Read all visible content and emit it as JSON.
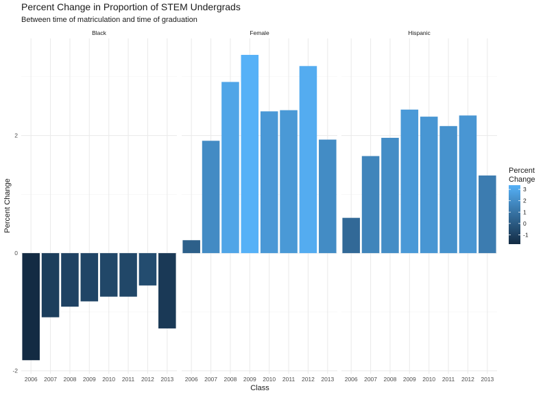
{
  "chart_data": {
    "type": "bar",
    "title": "Percent Change in Proportion of STEM Undergrads",
    "subtitle": "Between time of matriculation and time of graduation",
    "xlabel": "Class",
    "ylabel": "Percent Change",
    "categories": [
      "2006",
      "2007",
      "2008",
      "2009",
      "2010",
      "2011",
      "2012",
      "2013"
    ],
    "ylim": [
      -2.05,
      3.65
    ],
    "y_ticks": [
      -2,
      0,
      2
    ],
    "facets": [
      {
        "name": "Black",
        "values": [
          -1.82,
          -1.09,
          -0.91,
          -0.82,
          -0.74,
          -0.74,
          -0.55,
          -1.28
        ]
      },
      {
        "name": "Female",
        "values": [
          0.22,
          1.91,
          2.91,
          3.37,
          2.41,
          2.43,
          3.18,
          1.93
        ]
      },
      {
        "name": "Hispanic",
        "values": [
          0.6,
          1.65,
          1.96,
          2.44,
          2.32,
          2.16,
          2.34,
          1.32
        ]
      }
    ],
    "legend": {
      "title_line1": "Percent",
      "title_line2": "Change",
      "ticks": [
        "3",
        "2",
        "1",
        "0",
        "-1"
      ],
      "tick_values": [
        3,
        2,
        1,
        0,
        -1
      ],
      "color_low": "#132B43",
      "color_high": "#56B1F7",
      "position": "right"
    },
    "grid": true
  }
}
